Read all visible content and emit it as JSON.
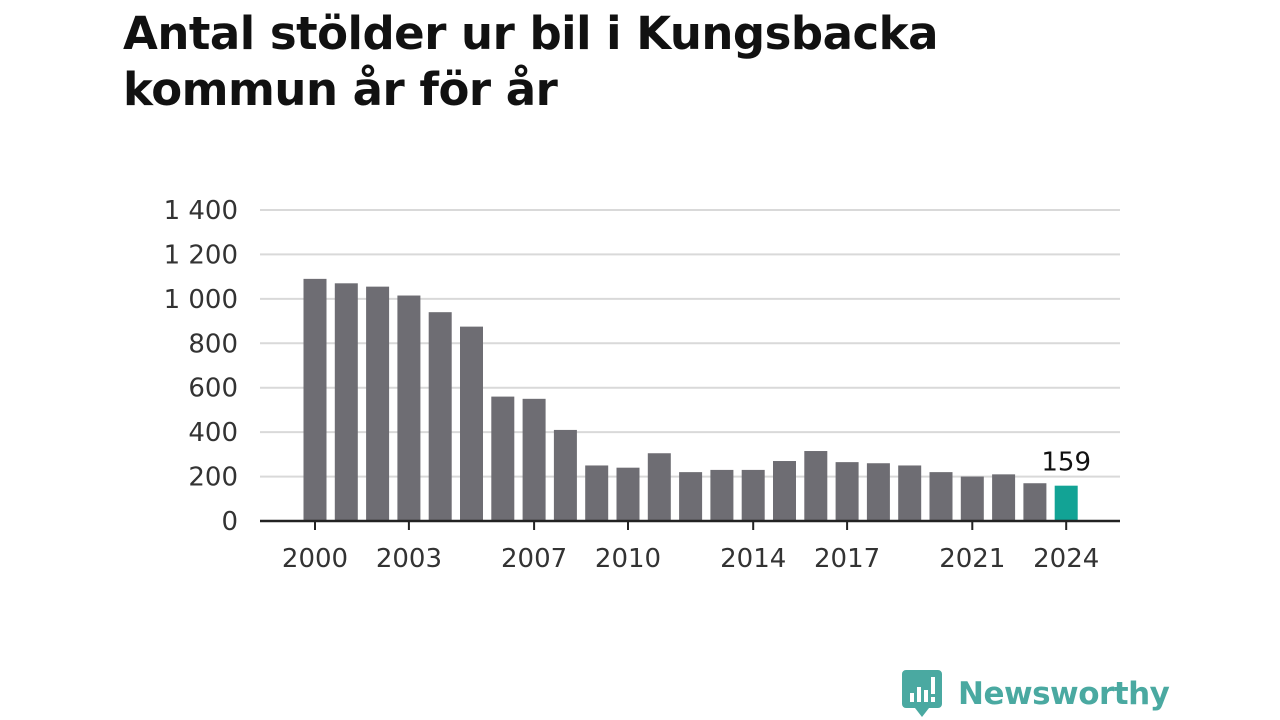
{
  "title": "Antal stölder ur bil i Kungsbacka kommun år för år",
  "brand": {
    "name": "Newsworthy",
    "icon": "newsworthy-logo-icon",
    "color": "#4aa9a1"
  },
  "colors": {
    "bar": "#6e6d73",
    "highlight": "#12a395",
    "grid": "#d9d9d9",
    "axis": "#222222"
  },
  "chart_data": {
    "type": "bar",
    "title": "Antal stölder ur bil i Kungsbacka kommun år för år",
    "xlabel": "",
    "ylabel": "",
    "categories": [
      "2000",
      "2001",
      "2002",
      "2003",
      "2004",
      "2005",
      "2006",
      "2007",
      "2008",
      "2009",
      "2010",
      "2011",
      "2012",
      "2013",
      "2014",
      "2015",
      "2016",
      "2017",
      "2018",
      "2019",
      "2020",
      "2021",
      "2022",
      "2023",
      "2024"
    ],
    "values": [
      1090,
      1070,
      1055,
      1015,
      940,
      875,
      560,
      550,
      410,
      250,
      240,
      305,
      220,
      230,
      230,
      270,
      315,
      265,
      260,
      250,
      220,
      200,
      210,
      170,
      159
    ],
    "x_tick_labels": [
      "2000",
      "2003",
      "2007",
      "2010",
      "2014",
      "2017",
      "2021",
      "2024"
    ],
    "y_ticks": [
      0,
      200,
      400,
      600,
      800,
      1000,
      1200,
      1400
    ],
    "y_tick_labels": [
      "0",
      "200",
      "400",
      "600",
      "800",
      "1 000",
      "1 200",
      "1 400"
    ],
    "ylim": [
      0,
      1400
    ],
    "grid": true,
    "highlight": {
      "category": "2024",
      "label": "159"
    }
  }
}
